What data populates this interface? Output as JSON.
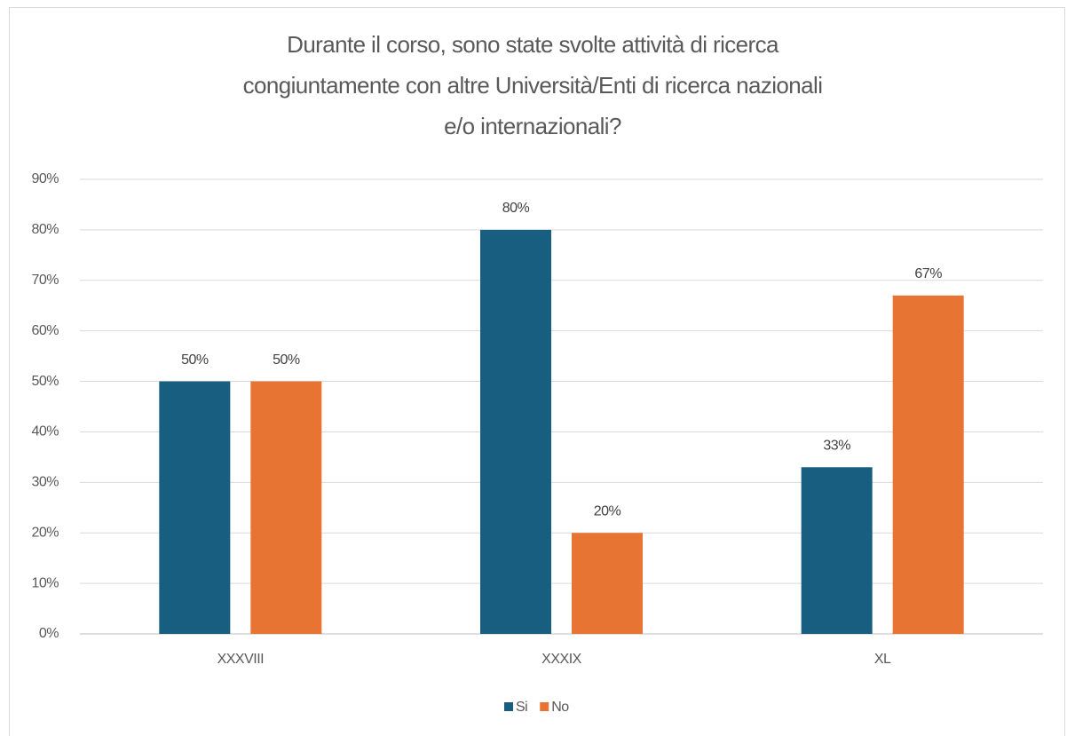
{
  "chart_data": {
    "type": "bar",
    "title": [
      "Durante il corso, sono state svolte attività di ricerca",
      "congiuntamente con altre Università/Enti di ricerca nazionali",
      "e/o internazionali?"
    ],
    "categories": [
      "XXXVIII",
      "XXXIX",
      "XL"
    ],
    "series": [
      {
        "name": "Si",
        "color": "#175e80",
        "values": [
          50,
          80,
          33
        ],
        "value_labels": [
          "50%",
          "80%",
          "33%"
        ]
      },
      {
        "name": "No",
        "color": "#e87433",
        "values": [
          50,
          20,
          67
        ],
        "value_labels": [
          "50%",
          "20%",
          "67%"
        ]
      }
    ],
    "ylim": [
      0,
      90
    ],
    "yticks": [
      {
        "value": 0,
        "label": "0%"
      },
      {
        "value": 10,
        "label": "10%"
      },
      {
        "value": 20,
        "label": "20%"
      },
      {
        "value": 30,
        "label": "30%"
      },
      {
        "value": 40,
        "label": "40%"
      },
      {
        "value": 50,
        "label": "50%"
      },
      {
        "value": 60,
        "label": "60%"
      },
      {
        "value": 70,
        "label": "70%"
      },
      {
        "value": 80,
        "label": "80%"
      },
      {
        "value": 90,
        "label": "90%"
      }
    ],
    "grid": true,
    "legend": "bottom"
  }
}
